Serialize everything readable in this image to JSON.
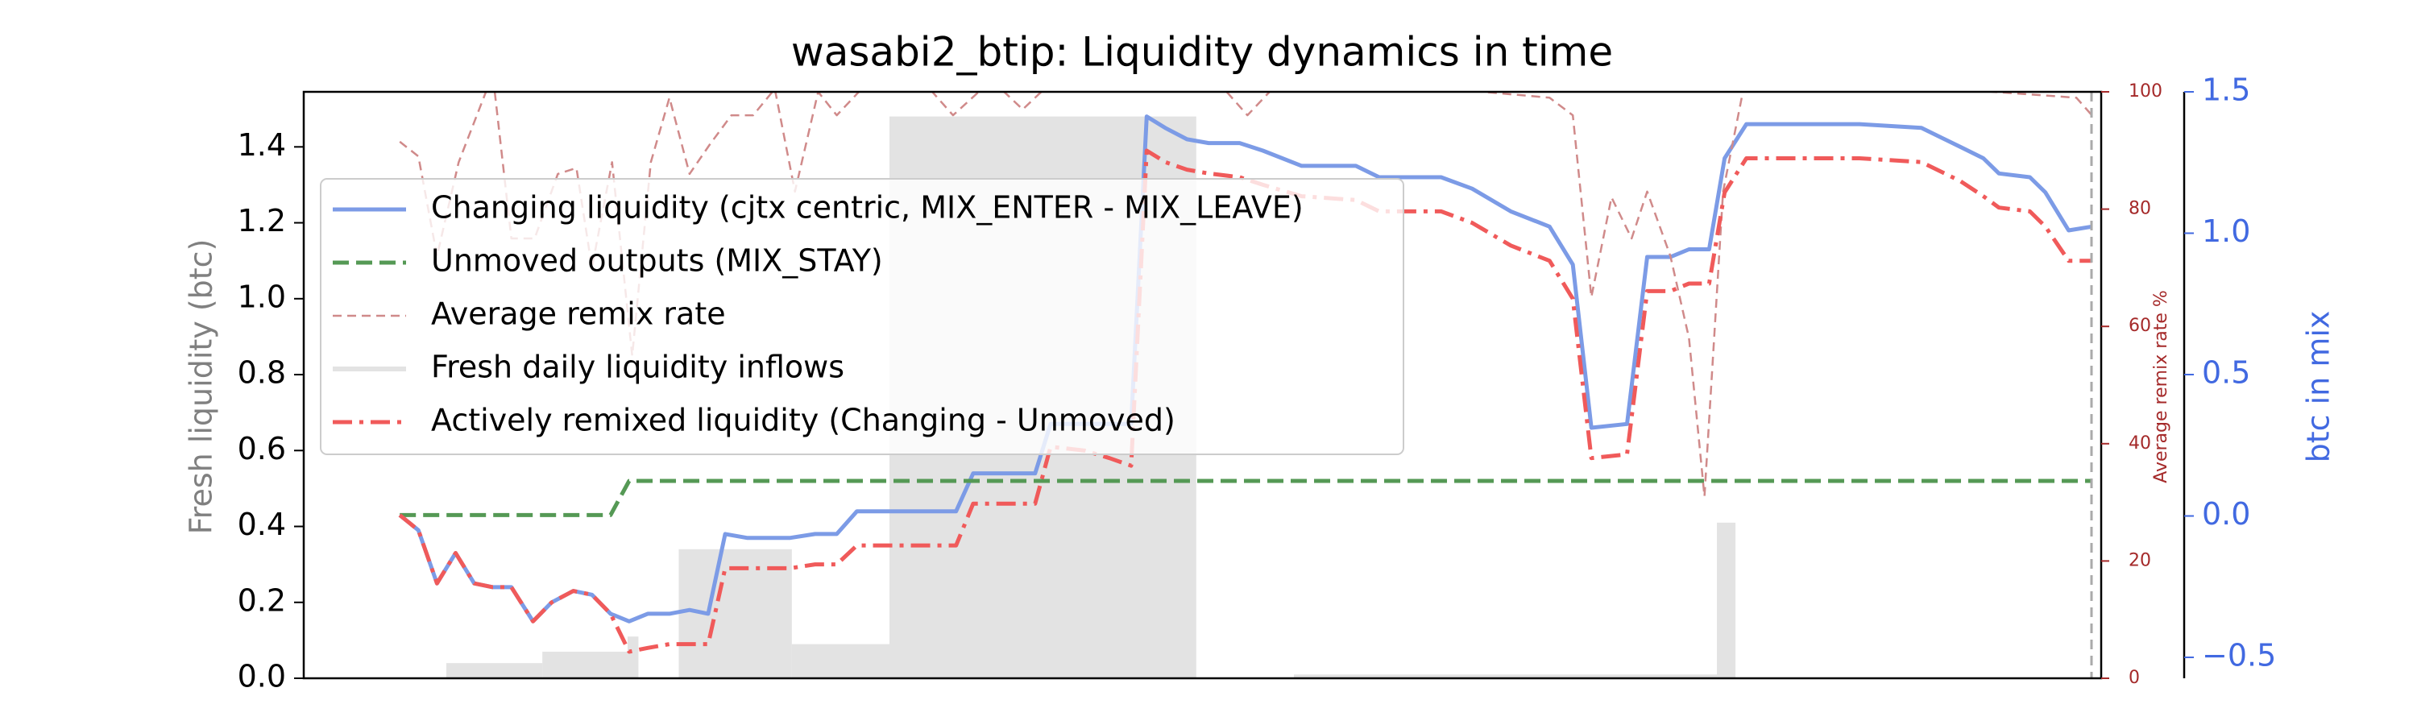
{
  "chart_data": {
    "type": "line",
    "title": "wasabi2_btip: Liquidity dynamics in time",
    "ylabel": "Fresh liquidity (btc)",
    "y2label": "btc in mix",
    "y3label": "Average remix rate %",
    "xlim": [
      -6.2,
      109.8
    ],
    "ylim": [
      0,
      1.545
    ],
    "yticks": [
      {
        "value": 0,
        "label": "0.0"
      },
      {
        "value": 0.2,
        "label": "0.2"
      },
      {
        "value": 0.4,
        "label": "0.4"
      },
      {
        "value": 0.6,
        "label": "0.6"
      },
      {
        "value": 0.8,
        "label": "0.8"
      },
      {
        "value": 1.0,
        "label": "1.0"
      },
      {
        "value": 1.2,
        "label": "1.2"
      },
      {
        "value": 1.4,
        "label": "1.4"
      }
    ],
    "y2lim": [
      -0.574,
      1.5
    ],
    "y2ticks": [
      {
        "value": -0.5,
        "label": "−0.5"
      },
      {
        "value": 0,
        "label": "0.0"
      },
      {
        "value": 0.5,
        "label": "0.5"
      },
      {
        "value": 1.0,
        "label": "1.0"
      },
      {
        "value": 1.5,
        "label": "1.5"
      }
    ],
    "y3lim": [
      0,
      100
    ],
    "y3ticks": [
      0,
      20,
      40,
      60,
      80,
      100
    ],
    "legend": "upper left",
    "series": [
      {
        "name": "Changing liquidity (cjtx centric, MIX_ENTER - MIX_LEAVE)",
        "type": "line",
        "style": "solid",
        "color": "#7c9be6",
        "axis": "y",
        "x": [
          0,
          1.2,
          2.4,
          3.6,
          4.8,
          6,
          7.2,
          8.6,
          9.8,
          11.2,
          12.4,
          13.6,
          14.8,
          16,
          17.4,
          18.7,
          19.9,
          21,
          22.4,
          23.8,
          25.2,
          26.8,
          28.2,
          29.5,
          31.2,
          33.2,
          35.9,
          37,
          38.7,
          41,
          42,
          44.2,
          45.8,
          47.2,
          48.2,
          49.4,
          50.8,
          52.2,
          54.2,
          55.7,
          58.2,
          61.7,
          63.2,
          67.2,
          69.2,
          71.7,
          74.2,
          75.7,
          76.9,
          79.2,
          80.5,
          82,
          83.2,
          84.5,
          85.5,
          86.9,
          90.2,
          94.2,
          98.2,
          100.7,
          102.2,
          103.2,
          105.2,
          106.2,
          107.7,
          109.2
        ],
        "values": [
          0.43,
          0.39,
          0.25,
          0.33,
          0.25,
          0.24,
          0.24,
          0.15,
          0.2,
          0.23,
          0.22,
          0.17,
          0.15,
          0.17,
          0.17,
          0.18,
          0.17,
          0.38,
          0.37,
          0.37,
          0.37,
          0.38,
          0.38,
          0.44,
          0.44,
          0.44,
          0.44,
          0.54,
          0.54,
          0.54,
          0.67,
          0.67,
          0.67,
          0.67,
          1.48,
          1.45,
          1.42,
          1.41,
          1.41,
          1.39,
          1.35,
          1.35,
          1.32,
          1.32,
          1.29,
          1.23,
          1.19,
          1.09,
          0.66,
          0.67,
          1.11,
          1.11,
          1.13,
          1.13,
          1.37,
          1.46,
          1.46,
          1.46,
          1.45,
          1.4,
          1.37,
          1.33,
          1.32,
          1.28,
          1.18,
          1.19
        ]
      },
      {
        "name": "Unmoved outputs (MIX_STAY)",
        "type": "line",
        "style": "dashed",
        "color": "#559955",
        "axis": "y",
        "x": [
          0,
          13.6,
          14.8,
          109.2
        ],
        "values": [
          0.43,
          0.43,
          0.52,
          0.52
        ]
      },
      {
        "name": "Average remix rate",
        "type": "line",
        "style": "thin-dashed",
        "color": "#d08a8a",
        "axis": "y3",
        "x": [
          0,
          1.2,
          2.4,
          3.8,
          6,
          7.2,
          8.7,
          10.2,
          11.4,
          12.4,
          13.7,
          15,
          16.2,
          17.4,
          18.7,
          20,
          21.4,
          22.8,
          24.2,
          25.5,
          27,
          28.2,
          29.8,
          31.7,
          34.2,
          35.7,
          38.2,
          40.2,
          42.2,
          44.2,
          50.2,
          53.2,
          54.7,
          57.2,
          74.2,
          75.7,
          76.9,
          78.2,
          79.5,
          80.5,
          82,
          83.2,
          84.2,
          85.4,
          86.9,
          108.2,
          109.2
        ],
        "values": [
          91.5,
          89,
          72,
          88,
          103,
          75,
          75,
          86,
          87,
          70,
          88,
          55,
          88,
          99,
          86,
          91,
          96,
          96,
          100.5,
          83,
          100,
          96,
          100.5,
          103,
          100.5,
          96,
          102,
          97,
          102,
          102,
          103,
          100.5,
          96,
          103,
          99,
          96,
          65,
          82,
          75,
          83,
          72,
          58,
          31,
          83,
          103,
          99,
          96
        ]
      },
      {
        "name": "Fresh daily liquidity inflows",
        "type": "bar",
        "color": "#e3e3e3",
        "axis": "y",
        "bins": [
          3,
          9.2,
          14.7,
          15.4,
          18,
          25.3,
          31.6,
          51.4,
          57.7,
          85,
          86.2
        ],
        "values": [
          0.04,
          0.07,
          0.11,
          0,
          0.34,
          0.09,
          1.48,
          0,
          0.01,
          0.41
        ]
      },
      {
        "name": "Actively remixed liquidity (Changing - Unmoved)",
        "type": "line",
        "style": "dashdot",
        "color": "#f05a5a",
        "axis": "y",
        "x": [
          0,
          1.2,
          2.4,
          3.6,
          4.8,
          6,
          7.2,
          8.6,
          9.8,
          11.2,
          12.4,
          13.6,
          14.8,
          16,
          17.4,
          18.7,
          19.9,
          21,
          22.4,
          23.8,
          25.2,
          26.8,
          28.2,
          29.5,
          31.2,
          33.2,
          35.9,
          37,
          38.7,
          41,
          42,
          44.2,
          45.8,
          47.2,
          48.2,
          49.4,
          50.8,
          52.2,
          54.2,
          55.7,
          58.2,
          61.7,
          63.2,
          67.2,
          69.2,
          71.7,
          74.2,
          75.7,
          76.9,
          79.2,
          80.5,
          82,
          83.2,
          84.5,
          85.5,
          86.9,
          90.2,
          94.2,
          98.2,
          100.7,
          102.2,
          103.2,
          105.2,
          106.2,
          107.7,
          109.2
        ],
        "values": [
          0.43,
          0.39,
          0.25,
          0.33,
          0.25,
          0.24,
          0.24,
          0.15,
          0.2,
          0.23,
          0.22,
          0.17,
          0.07,
          0.08,
          0.09,
          0.09,
          0.09,
          0.29,
          0.29,
          0.29,
          0.29,
          0.3,
          0.3,
          0.35,
          0.35,
          0.35,
          0.35,
          0.46,
          0.46,
          0.46,
          0.61,
          0.6,
          0.58,
          0.56,
          1.39,
          1.36,
          1.34,
          1.33,
          1.32,
          1.3,
          1.27,
          1.26,
          1.23,
          1.23,
          1.2,
          1.14,
          1.1,
          1.0,
          0.58,
          0.59,
          1.02,
          1.02,
          1.04,
          1.04,
          1.28,
          1.37,
          1.37,
          1.37,
          1.36,
          1.31,
          1.27,
          1.24,
          1.23,
          1.19,
          1.1,
          1.1
        ]
      }
    ]
  }
}
